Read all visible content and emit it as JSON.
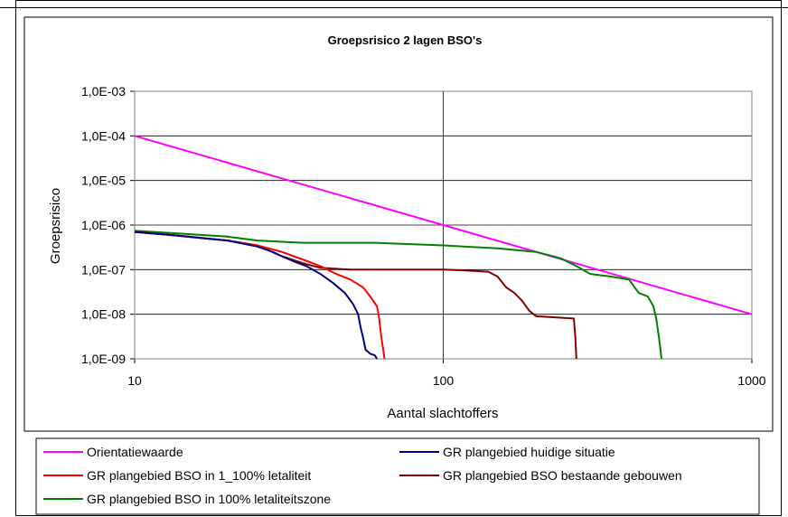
{
  "chart_data": {
    "type": "line",
    "title": "Groepsrisico 2 lagen BSO's",
    "xlabel": "Aantal slachtoffers",
    "ylabel": "Groepsrisico",
    "x_scale": "log",
    "y_scale": "log",
    "xlim": [
      10,
      1000
    ],
    "ylim": [
      1e-09,
      0.001
    ],
    "x_ticks": [
      {
        "value": 10,
        "label": "10"
      },
      {
        "value": 100,
        "label": "100"
      },
      {
        "value": 1000,
        "label": "1000"
      }
    ],
    "y_ticks": [
      {
        "value": 0.001,
        "label": "1,0E-03"
      },
      {
        "value": 0.0001,
        "label": "1,0E-04"
      },
      {
        "value": 1e-05,
        "label": "1,0E-05"
      },
      {
        "value": 1e-06,
        "label": "1,0E-06"
      },
      {
        "value": 1e-07,
        "label": "1,0E-07"
      },
      {
        "value": 1e-08,
        "label": "1,0E-08"
      },
      {
        "value": 1e-09,
        "label": "1,0E-09"
      }
    ],
    "grid": "major horizontal and vertical",
    "legend_position": "bottom",
    "series": [
      {
        "name": "Orientatiewaarde",
        "color": "#ff00ff",
        "points": [
          [
            10,
            0.0001
          ],
          [
            100,
            1e-06
          ],
          [
            1000,
            1e-08
          ]
        ]
      },
      {
        "name": "GR plangebied huidige situatie",
        "color": "#000080",
        "points": [
          [
            10,
            7e-07
          ],
          [
            13,
            6e-07
          ],
          [
            17,
            5e-07
          ],
          [
            20,
            4.5e-07
          ],
          [
            25,
            3.3e-07
          ],
          [
            28,
            2.5e-07
          ],
          [
            30,
            2e-07
          ],
          [
            33,
            1.5e-07
          ],
          [
            36,
            1.2e-07
          ],
          [
            40,
            8e-08
          ],
          [
            44,
            5e-08
          ],
          [
            48,
            3e-08
          ],
          [
            51,
            1.7e-08
          ],
          [
            53,
            1e-08
          ],
          [
            54,
            5e-09
          ],
          [
            55,
            3e-09
          ],
          [
            56,
            1.6e-09
          ],
          [
            58,
            1.3e-09
          ],
          [
            60,
            1.2e-09
          ],
          [
            61,
            1e-09
          ]
        ]
      },
      {
        "name": "GR plangebied BSO in 1_100% letaliteit",
        "color": "#ff0000",
        "points": [
          [
            10,
            7e-07
          ],
          [
            13,
            6e-07
          ],
          [
            17,
            5e-07
          ],
          [
            20,
            4.5e-07
          ],
          [
            25,
            3.5e-07
          ],
          [
            30,
            2.5e-07
          ],
          [
            35,
            1.7e-07
          ],
          [
            40,
            1.2e-07
          ],
          [
            45,
            8e-08
          ],
          [
            50,
            6e-08
          ],
          [
            55,
            4e-08
          ],
          [
            58,
            2.5e-08
          ],
          [
            61,
            1.5e-08
          ],
          [
            62,
            8e-09
          ],
          [
            63,
            3e-09
          ],
          [
            64,
            1.5e-09
          ],
          [
            64.5,
            1e-09
          ]
        ]
      },
      {
        "name": "GR plangebied BSO bestaande gebouwen",
        "color": "#800000",
        "points": [
          [
            10,
            7e-07
          ],
          [
            15,
            5.5e-07
          ],
          [
            20,
            4.5e-07
          ],
          [
            25,
            3.5e-07
          ],
          [
            30,
            2e-07
          ],
          [
            35,
            1.4e-07
          ],
          [
            40,
            1.1e-07
          ],
          [
            50,
            1e-07
          ],
          [
            75,
            1e-07
          ],
          [
            100,
            1e-07
          ],
          [
            120,
            9.5e-08
          ],
          [
            140,
            9e-08
          ],
          [
            150,
            7e-08
          ],
          [
            160,
            4e-08
          ],
          [
            170,
            3e-08
          ],
          [
            180,
            2e-08
          ],
          [
            190,
            1.2e-08
          ],
          [
            200,
            9e-09
          ],
          [
            230,
            8.5e-09
          ],
          [
            265,
            8e-09
          ],
          [
            268,
            3e-09
          ],
          [
            270,
            1e-09
          ]
        ]
      },
      {
        "name": "GR plangebied BSO in 100% letaliteitszone",
        "color": "#008000",
        "points": [
          [
            10,
            7.5e-07
          ],
          [
            20,
            5.5e-07
          ],
          [
            25,
            4.5e-07
          ],
          [
            35,
            4e-07
          ],
          [
            60,
            4e-07
          ],
          [
            100,
            3.5e-07
          ],
          [
            150,
            3e-07
          ],
          [
            200,
            2.5e-07
          ],
          [
            240,
            1.8e-07
          ],
          [
            270,
            1.2e-07
          ],
          [
            300,
            8e-08
          ],
          [
            350,
            7e-08
          ],
          [
            400,
            6e-08
          ],
          [
            430,
            3e-08
          ],
          [
            460,
            2.5e-08
          ],
          [
            480,
            1.5e-08
          ],
          [
            490,
            8e-09
          ],
          [
            500,
            3e-09
          ],
          [
            510,
            1e-09
          ]
        ]
      }
    ]
  }
}
